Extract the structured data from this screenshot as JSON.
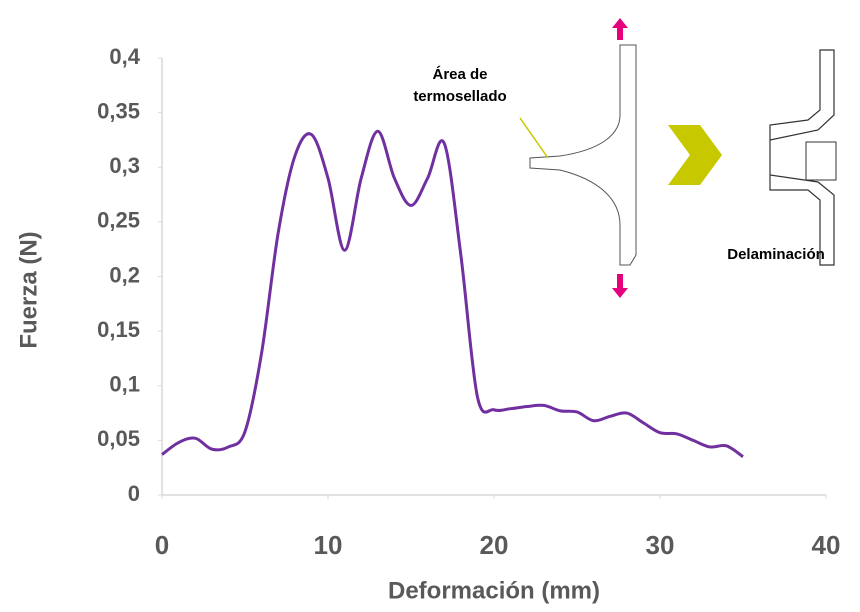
{
  "chart_data": {
    "type": "line",
    "x_label": "Deformación (mm)",
    "y_label": "Fuerza (N)",
    "annotations": [
      "Área de termosellado",
      "Delaminación"
    ],
    "x": [
      0,
      1,
      2,
      3,
      4,
      5,
      6,
      7,
      8,
      9,
      10,
      11,
      12,
      13,
      14,
      15,
      16,
      17,
      18,
      19,
      20,
      21,
      22,
      23,
      24,
      25,
      26,
      27,
      28,
      29,
      30,
      31,
      32,
      33,
      34,
      35
    ],
    "series": [
      {
        "color": "#7030a0",
        "values": [
          0.037,
          0.048,
          0.052,
          0.042,
          0.044,
          0.058,
          0.13,
          0.24,
          0.31,
          0.33,
          0.29,
          0.224,
          0.29,
          0.333,
          0.29,
          0.265,
          0.29,
          0.322,
          0.22,
          0.09,
          0.078,
          0.079,
          0.081,
          0.082,
          0.077,
          0.076,
          0.068,
          0.072,
          0.075,
          0.066,
          0.057,
          0.056,
          0.05,
          0.044,
          0.045,
          0.035
        ]
      }
    ],
    "xlim": [
      0,
      40
    ],
    "xticks": [
      0,
      10,
      20,
      30,
      40
    ],
    "ylim": [
      0,
      0.4
    ],
    "yticks": [
      0,
      {
        "value": 0.05,
        "label": "0,05"
      },
      {
        "value": 0.1,
        "label": "0,1"
      },
      {
        "value": 0.15,
        "label": "0,15"
      },
      {
        "value": 0.2,
        "label": "0,2"
      },
      {
        "value": 0.25,
        "label": "0,25"
      },
      {
        "value": 0.3,
        "label": "0,3"
      },
      {
        "value": 0.35,
        "label": "0,35"
      },
      {
        "value": 0.4,
        "label": "0,4"
      }
    ],
    "grid": false
  }
}
